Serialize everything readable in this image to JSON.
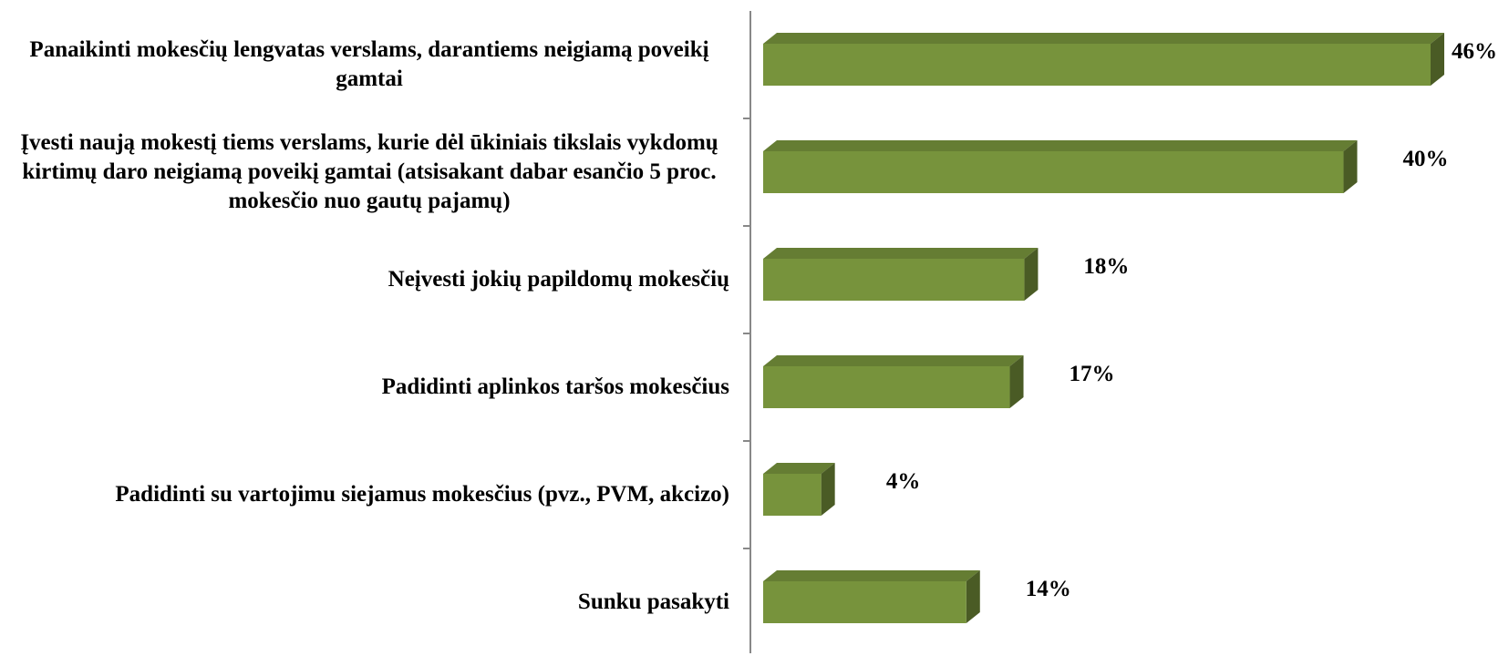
{
  "chart_data": {
    "type": "bar",
    "orientation": "horizontal",
    "categories": [
      "Panaikinti mokesčių lengvatas verslams, darantiems neigiamą poveikį gamtai",
      "Įvesti naują mokestį tiems verslams, kurie dėl ūkiniais tikslais vykdomų kirtimų daro neigiamą poveikį gamtai (atsisakant dabar esančio 5 proc. mokesčio nuo gautų pajamų)",
      "Neįvesti jokių papildomų mokesčių",
      "Padidinti aplinkos taršos mokesčius",
      "Padidinti su vartojimu siejamus mokesčius (pvz., PVM, akcizo)",
      "Sunku pasakyti"
    ],
    "values": [
      46,
      40,
      18,
      17,
      4,
      14
    ],
    "value_labels": [
      "46%",
      "40%",
      "18%",
      "17%",
      "4%",
      "14%"
    ],
    "color": "#77933c"
  }
}
